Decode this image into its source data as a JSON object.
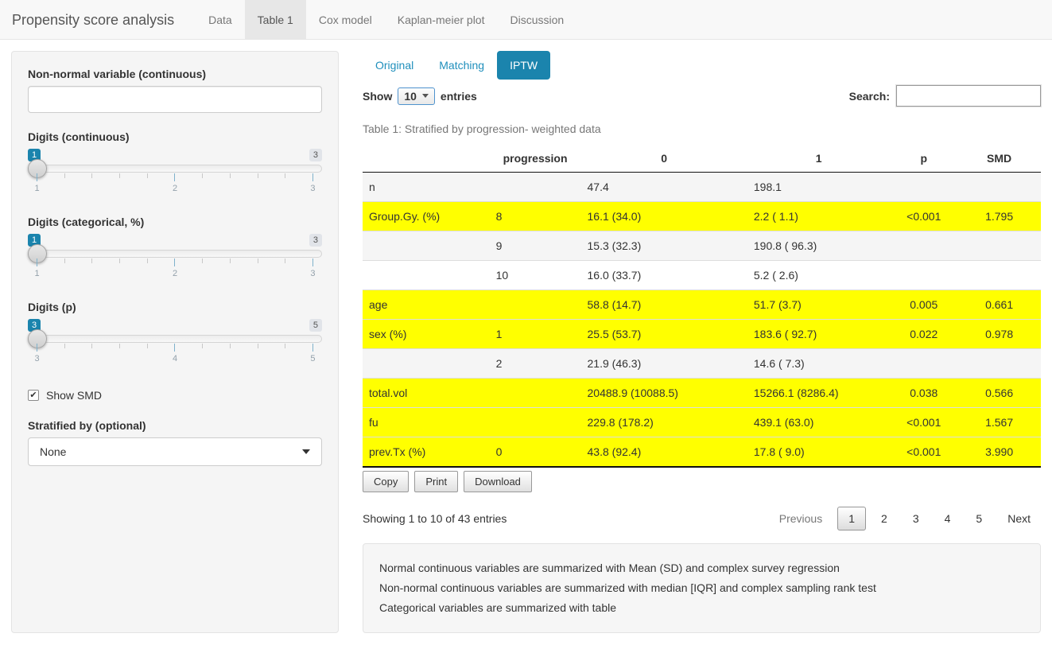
{
  "colors": {
    "accent": "#1b84ad",
    "link": "#1f8fbc",
    "highlight": "#ffff00"
  },
  "navbar": {
    "brand": "Propensity score analysis",
    "tabs": [
      {
        "label": "Data",
        "active": false
      },
      {
        "label": "Table 1",
        "active": true
      },
      {
        "label": "Cox model",
        "active": false
      },
      {
        "label": "Kaplan-meier plot",
        "active": false
      },
      {
        "label": "Discussion",
        "active": false
      }
    ]
  },
  "sidebar": {
    "nonnormal_label": "Non-normal variable (continuous)",
    "nonnormal_value": "",
    "sliders": [
      {
        "label": "Digits (continuous)",
        "value": "1",
        "max": "3",
        "ticks": [
          "1",
          "2",
          "3"
        ]
      },
      {
        "label": "Digits (categorical, %)",
        "value": "1",
        "max": "3",
        "ticks": [
          "1",
          "2",
          "3"
        ]
      },
      {
        "label": "Digits (p)",
        "value": "3",
        "max": "5",
        "ticks": [
          "3",
          "4",
          "5"
        ]
      }
    ],
    "show_smd_label": "Show SMD",
    "show_smd_checked": true,
    "check_glyph": "✔",
    "stratified_label": "Stratified by (optional)",
    "stratified_value": "None"
  },
  "main": {
    "pills": [
      {
        "label": "Original",
        "active": false
      },
      {
        "label": "Matching",
        "active": false
      },
      {
        "label": "IPTW",
        "active": true
      }
    ],
    "length_control": {
      "prefix": "Show",
      "value": "10",
      "suffix": "entries"
    },
    "search_label": "Search:",
    "search_value": "",
    "caption": "Table 1: Stratified by progression- weighted data",
    "table": {
      "columns": [
        "",
        "progression",
        "0",
        "1",
        "p",
        "SMD"
      ],
      "rows": [
        {
          "cells": [
            "n",
            "",
            "47.4",
            "198.1",
            "",
            ""
          ],
          "highlight": false,
          "stripe": true
        },
        {
          "cells": [
            "Group.Gy. (%)",
            "8",
            "16.1 (34.0)",
            "2.2 ( 1.1)",
            "<0.001",
            "1.795"
          ],
          "highlight": true,
          "stripe": false
        },
        {
          "cells": [
            "",
            "9",
            "15.3 (32.3)",
            "190.8 ( 96.3)",
            "",
            ""
          ],
          "highlight": false,
          "stripe": true
        },
        {
          "cells": [
            "",
            "10",
            "16.0 (33.7)",
            "5.2 ( 2.6)",
            "",
            ""
          ],
          "highlight": false,
          "stripe": false
        },
        {
          "cells": [
            "age",
            "",
            "58.8 (14.7)",
            "51.7 (3.7)",
            "0.005",
            "0.661"
          ],
          "highlight": true,
          "stripe": true
        },
        {
          "cells": [
            "sex (%)",
            "1",
            "25.5 (53.7)",
            "183.6 ( 92.7)",
            "0.022",
            "0.978"
          ],
          "highlight": true,
          "stripe": false
        },
        {
          "cells": [
            "",
            "2",
            "21.9 (46.3)",
            "14.6 ( 7.3)",
            "",
            ""
          ],
          "highlight": false,
          "stripe": true
        },
        {
          "cells": [
            "total.vol",
            "",
            "20488.9 (10088.5)",
            "15266.1 (8286.4)",
            "0.038",
            "0.566"
          ],
          "highlight": true,
          "stripe": false
        },
        {
          "cells": [
            "fu",
            "",
            "229.8 (178.2)",
            "439.1 (63.0)",
            "<0.001",
            "1.567"
          ],
          "highlight": true,
          "stripe": true
        },
        {
          "cells": [
            "prev.Tx (%)",
            "0",
            "43.8 (92.4)",
            "17.8 ( 9.0)",
            "<0.001",
            "3.990"
          ],
          "highlight": true,
          "stripe": false
        }
      ]
    },
    "buttons": [
      "Copy",
      "Print",
      "Download"
    ],
    "info": "Showing 1 to 10 of 43 entries",
    "pagination": {
      "previous": "Previous",
      "pages": [
        "1",
        "2",
        "3",
        "4",
        "5"
      ],
      "active": "1",
      "next": "Next"
    },
    "notes": [
      "Normal continuous variables are summarized with Mean (SD) and complex survey regression",
      "Non-normal continuous variables are summarized with median [IQR] and complex sampling rank test",
      "Categorical variables are summarized with table"
    ]
  }
}
